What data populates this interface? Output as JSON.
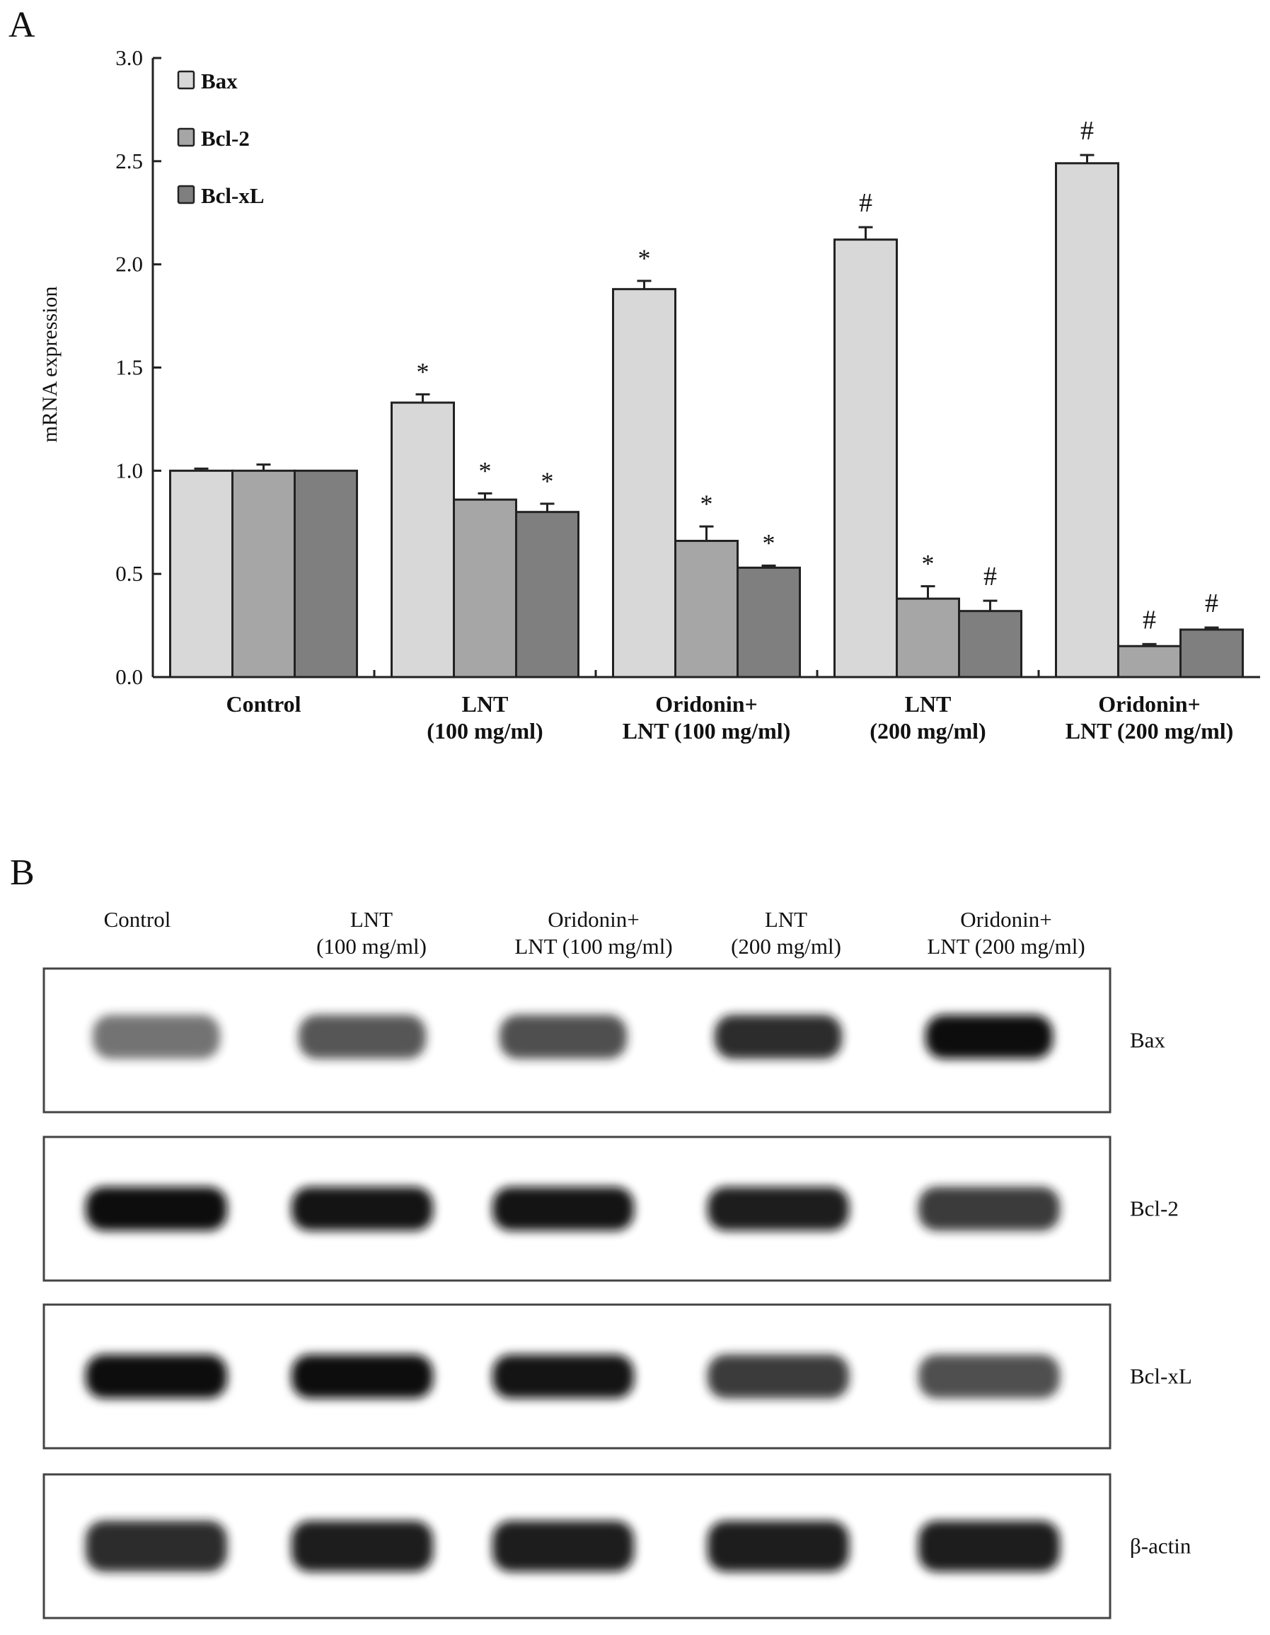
{
  "chart_data": {
    "type": "bar",
    "panel_label": "A",
    "title": "",
    "xlabel": "",
    "ylabel": "mRNA expression",
    "ylim": [
      0,
      3.0
    ],
    "yticks": [
      "0.0",
      "0.5",
      "1.0",
      "1.5",
      "2.0",
      "2.5",
      "3.0"
    ],
    "grid": false,
    "legend_position": "top-left",
    "categories": [
      [
        "Control"
      ],
      [
        "LNT",
        "(100 mg/ml)"
      ],
      [
        "Oridonin+",
        "LNT (100 mg/ml)"
      ],
      [
        "LNT",
        "(200 mg/ml)"
      ],
      [
        "Oridonin+",
        "LNT (200 mg/ml)"
      ]
    ],
    "series": [
      {
        "name": "Bax",
        "color": "#d8d8d8",
        "values": [
          1.0,
          1.33,
          1.88,
          2.12,
          2.49
        ],
        "errors": [
          0.01,
          0.04,
          0.04,
          0.06,
          0.04
        ],
        "marks": [
          "",
          "*",
          "*",
          "#",
          "#"
        ]
      },
      {
        "name": "Bcl-2",
        "color": "#a6a6a6",
        "values": [
          1.0,
          0.86,
          0.66,
          0.38,
          0.15
        ],
        "errors": [
          0.03,
          0.03,
          0.07,
          0.06,
          0.01
        ],
        "marks": [
          "",
          "*",
          "*",
          "*",
          "#"
        ]
      },
      {
        "name": "Bcl-xL",
        "color": "#7f7f7f",
        "values": [
          1.0,
          0.8,
          0.53,
          0.32,
          0.23
        ],
        "errors": [
          0.0,
          0.04,
          0.01,
          0.05,
          0.01
        ],
        "marks": [
          "",
          "*",
          "*",
          "#",
          "#"
        ]
      }
    ]
  },
  "gel": {
    "panel_label": "B",
    "lanes": [
      [
        "Control"
      ],
      [
        "LNT",
        "(100 mg/ml)"
      ],
      [
        "Oridonin+",
        "LNT (100 mg/ml)"
      ],
      [
        "LNT",
        "(200 mg/ml)"
      ],
      [
        "Oridonin+",
        "LNT (200 mg/ml)"
      ]
    ],
    "rows": [
      {
        "label": "Bax",
        "intensity": [
          0.45,
          0.6,
          0.65,
          0.85,
          1.0
        ]
      },
      {
        "label": "Bcl-2",
        "intensity": [
          1.0,
          0.95,
          0.95,
          0.9,
          0.75
        ]
      },
      {
        "label": "Bcl-xL",
        "intensity": [
          1.0,
          1.0,
          0.95,
          0.75,
          0.65
        ]
      },
      {
        "label": "β-actin",
        "intensity": [
          0.85,
          0.9,
          0.9,
          0.9,
          0.9
        ]
      }
    ]
  }
}
